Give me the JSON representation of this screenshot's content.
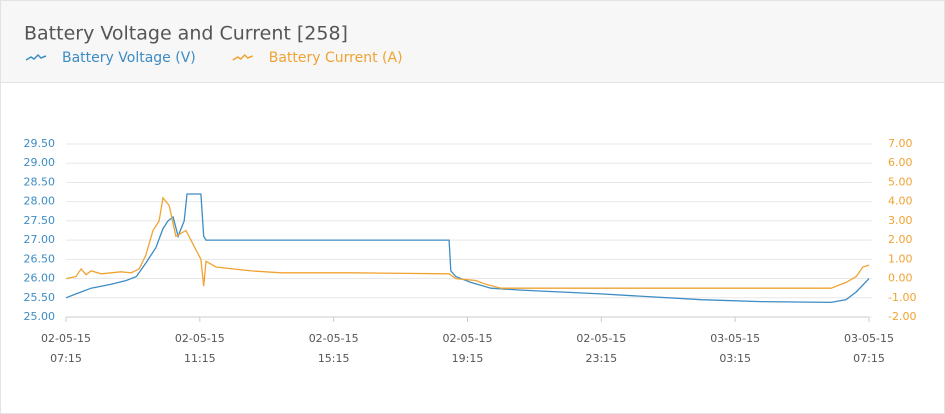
{
  "chart_data": {
    "type": "line",
    "title": "Battery Voltage and Current [258]",
    "xlim": [
      "02-05-15 07:15",
      "03-05-15 07:15"
    ],
    "xticks": [
      {
        "value": "02-05-15 07:15",
        "label": [
          "02-05-15",
          "07:15"
        ]
      },
      {
        "value": "02-05-15 11:15",
        "label": [
          "02-05-15",
          "11:15"
        ]
      },
      {
        "value": "02-05-15 15:15",
        "label": [
          "02-05-15",
          "15:15"
        ]
      },
      {
        "value": "02-05-15 19:15",
        "label": [
          "02-05-15",
          "19:15"
        ]
      },
      {
        "value": "02-05-15 23:15",
        "label": [
          "02-05-15",
          "23:15"
        ]
      },
      {
        "value": "03-05-15 03:15",
        "label": [
          "03-05-15",
          "03:15"
        ]
      },
      {
        "value": "03-05-15 07:15",
        "label": [
          "03-05-15",
          "07:15"
        ]
      }
    ],
    "ylim": [
      25,
      29.5
    ],
    "yticks": [
      {
        "value": 25,
        "label": "25.00"
      },
      {
        "value": 25.5,
        "label": "25.50"
      },
      {
        "value": 26,
        "label": "26.00"
      },
      {
        "value": 26.5,
        "label": "26.50"
      },
      {
        "value": 27,
        "label": "27.00"
      },
      {
        "value": 27.5,
        "label": "27.50"
      },
      {
        "value": 28,
        "label": "28.00"
      },
      {
        "value": 28.5,
        "label": "28.50"
      },
      {
        "value": 29,
        "label": "29.00"
      },
      {
        "value": 29.5,
        "label": "29.50"
      }
    ],
    "y2lim": [
      -2,
      7
    ],
    "y2ticks": [
      {
        "value": -2,
        "label": "-2.00"
      },
      {
        "value": -1,
        "label": "-1.00"
      },
      {
        "value": 0,
        "label": "0.00"
      },
      {
        "value": 1,
        "label": "1.00"
      },
      {
        "value": 2,
        "label": "2.00"
      },
      {
        "value": 3,
        "label": "3.00"
      },
      {
        "value": 4,
        "label": "4.00"
      },
      {
        "value": 5,
        "label": "5.00"
      },
      {
        "value": 6,
        "label": "6.00"
      },
      {
        "value": 7,
        "label": "7.00"
      }
    ],
    "grid": true,
    "series": [
      {
        "name": "Battery Voltage (V)",
        "color": "#3d8cc4",
        "x": [
          "02-05-15 07:15",
          "02-05-15 07:33",
          "02-05-15 08:00",
          "02-05-15 08:36",
          "02-05-15 09:03",
          "02-05-15 09:21",
          "02-05-15 09:38",
          "02-05-15 09:56",
          "02-05-15 10:09",
          "02-05-15 10:18",
          "02-05-15 10:27",
          "02-05-15 10:36",
          "02-05-15 10:47",
          "02-05-15 10:52",
          "02-05-15 11:17",
          "02-05-15 11:22",
          "02-05-15 11:26",
          "02-05-15 18:42",
          "02-05-15 18:45",
          "02-05-15 18:54",
          "02-05-15 19:21",
          "02-05-15 19:57",
          "02-05-15 20:51",
          "02-05-15 23:14",
          "03-05-15 02:14",
          "03-05-15 04:01",
          "03-05-15 06:07",
          "03-05-15 06:34",
          "03-05-15 06:52",
          "03-05-15 07:15"
        ],
        "values": [
          25.5,
          25.6,
          25.75,
          25.85,
          25.95,
          26.05,
          26.4,
          26.8,
          27.3,
          27.5,
          27.6,
          27.1,
          27.5,
          28.2,
          28.2,
          27.1,
          27.0,
          27.0,
          26.2,
          26.05,
          25.9,
          25.75,
          25.7,
          25.6,
          25.45,
          25.4,
          25.38,
          25.45,
          25.65,
          26.0
        ]
      },
      {
        "name": "Battery Current (A)",
        "color": "#f0a332",
        "axis": "y2",
        "x": [
          "02-05-15 07:15",
          "02-05-15 07:33",
          "02-05-15 07:42",
          "02-05-15 07:51",
          "02-05-15 08:00",
          "02-05-15 08:18",
          "02-05-15 08:36",
          "02-05-15 08:54",
          "02-05-15 09:12",
          "02-05-15 09:26",
          "02-05-15 09:38",
          "02-05-15 09:51",
          "02-05-15 10:02",
          "02-05-15 10:09",
          "02-05-15 10:20",
          "02-05-15 10:32",
          "02-05-15 10:50",
          "02-05-15 11:08",
          "02-05-15 11:17",
          "02-05-15 11:22",
          "02-05-15 11:26",
          "02-05-15 11:44",
          "02-05-15 12:47",
          "02-05-15 13:41",
          "02-05-15 15:46",
          "02-05-15 18:42",
          "02-05-15 18:54",
          "02-05-15 19:30",
          "02-05-15 19:48",
          "02-05-15 20:15",
          "03-05-15 06:07",
          "03-05-15 06:34",
          "03-05-15 06:52",
          "03-05-15 07:04",
          "03-05-15 07:15"
        ],
        "values": [
          0.0,
          0.1,
          0.5,
          0.2,
          0.4,
          0.25,
          0.3,
          0.35,
          0.3,
          0.5,
          1.2,
          2.5,
          3.0,
          4.2,
          3.8,
          2.2,
          2.5,
          1.5,
          1.0,
          -0.4,
          0.9,
          0.6,
          0.4,
          0.3,
          0.3,
          0.25,
          0.0,
          -0.1,
          -0.3,
          -0.5,
          -0.5,
          -0.2,
          0.1,
          0.6,
          0.7
        ]
      }
    ]
  }
}
